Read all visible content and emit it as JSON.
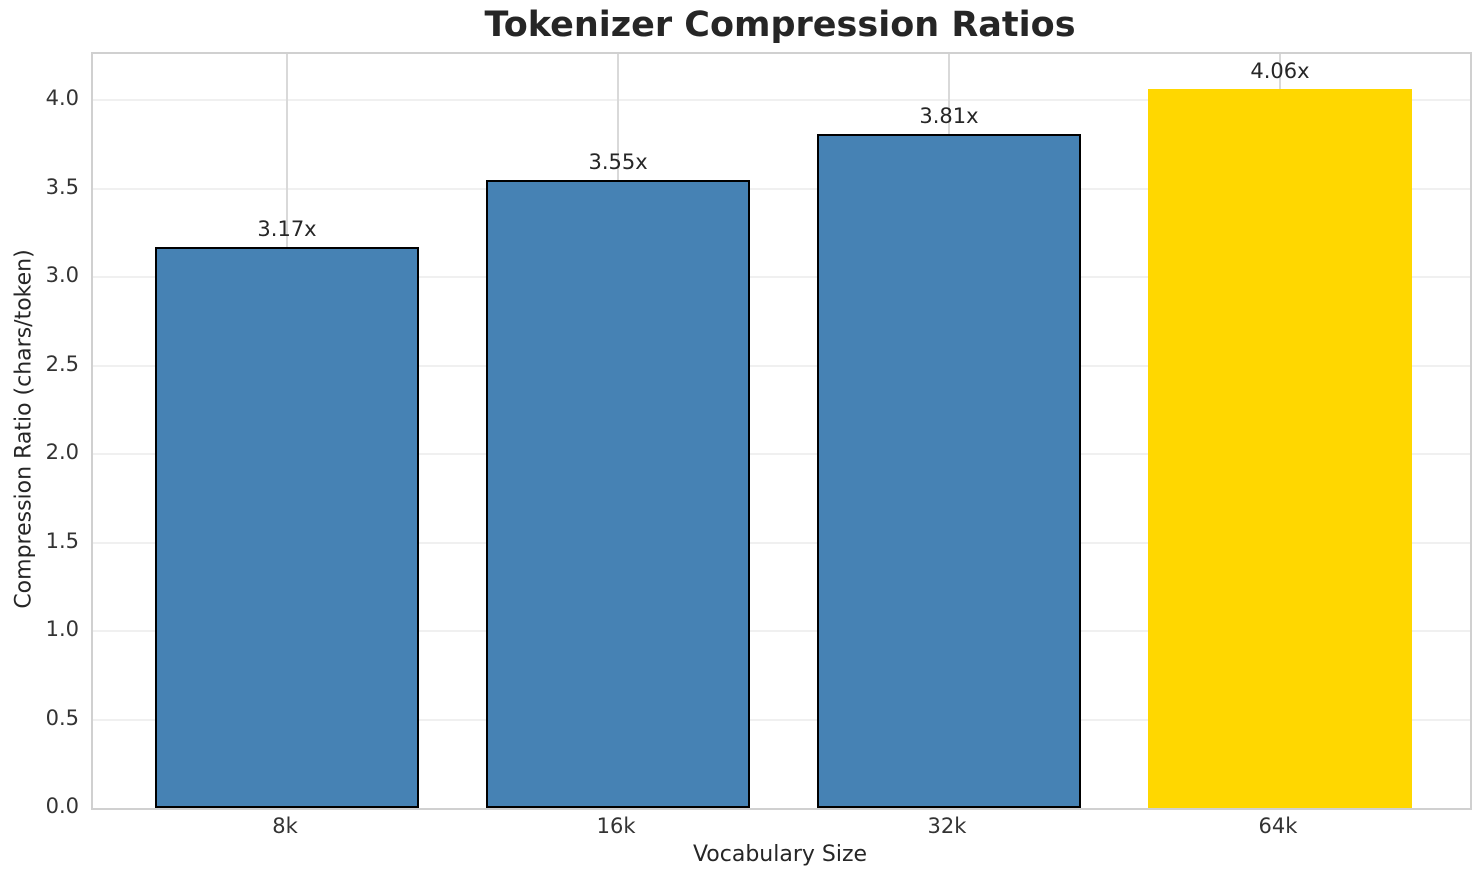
{
  "chart_data": {
    "type": "bar",
    "title": "Tokenizer Compression Ratios",
    "xlabel": "Vocabulary Size",
    "ylabel": "Compression Ratio (chars/token)",
    "categories": [
      "8k",
      "16k",
      "32k",
      "64k"
    ],
    "values": [
      3.17,
      3.55,
      3.81,
      4.06
    ],
    "value_labels": [
      "3.17x",
      "3.55x",
      "3.81x",
      "4.06x"
    ],
    "bar_colors": [
      "#4682b4",
      "#4682b4",
      "#4682b4",
      "#ffd700"
    ],
    "bar_edge_colors": [
      "#000000",
      "#000000",
      "#000000",
      "none"
    ],
    "highlight": {
      "category": "64k",
      "color": "#ffd700"
    },
    "ylim": [
      0,
      4.26
    ],
    "yticks": [
      0.0,
      0.5,
      1.0,
      1.5,
      2.0,
      2.5,
      3.0,
      3.5,
      4.0
    ],
    "ytick_labels": [
      "0.0",
      "0.5",
      "1.0",
      "1.5",
      "2.0",
      "2.5",
      "3.0",
      "3.5",
      "4.0"
    ],
    "grid": {
      "horizontal": true,
      "vertical": true
    },
    "legend": "none",
    "style": {
      "background": "#ffffff",
      "spine_color": "#d0d0d0",
      "grid_h_color": "#f0f0f0",
      "grid_v_color": "#d9d9d9",
      "text_color": "#262626",
      "tick_text_color": "#333333",
      "bar_main_color": "#4682b4",
      "bar_highlight_color": "#ffd700",
      "bar_edge_color": "#000000"
    }
  }
}
